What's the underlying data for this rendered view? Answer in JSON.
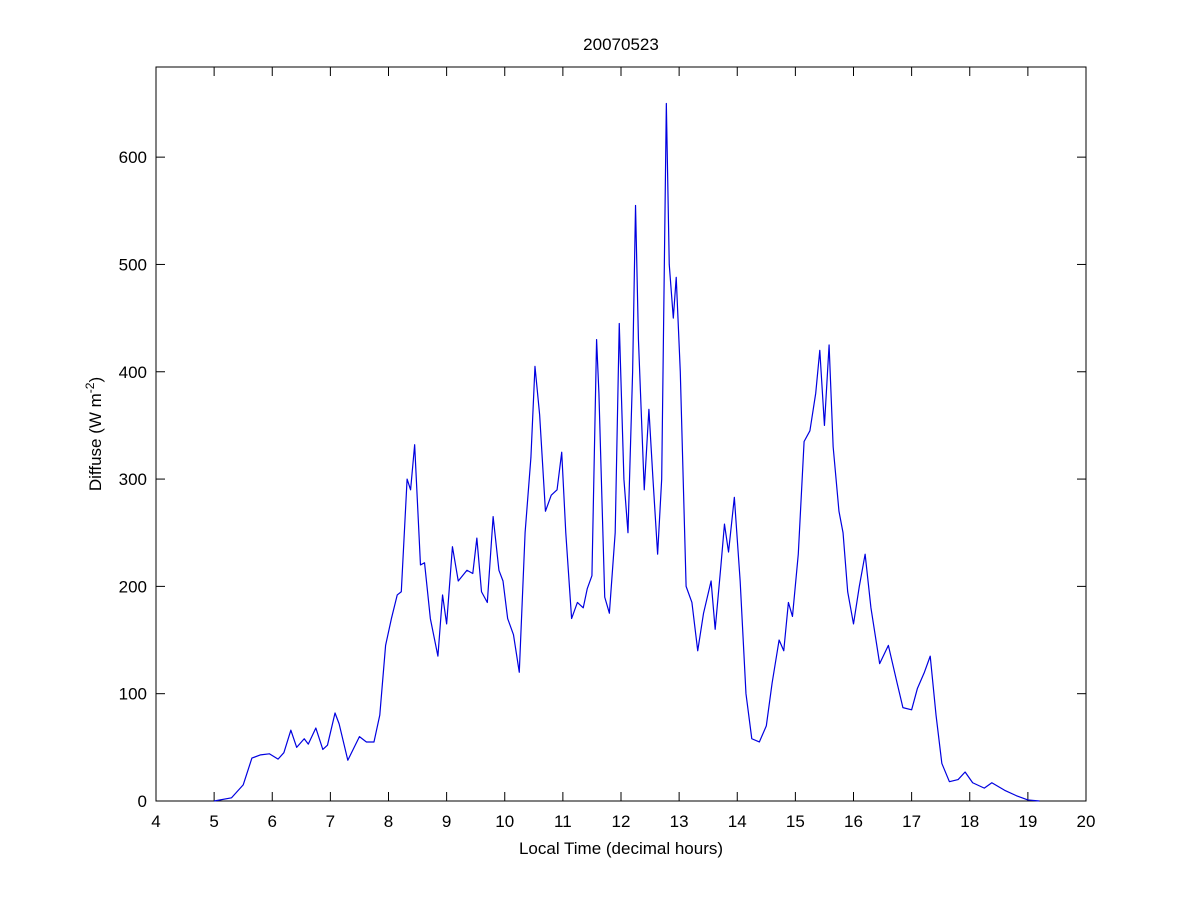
{
  "chart_data": {
    "type": "line",
    "title": "20070523",
    "xlabel": "Local Time (decimal hours)",
    "ylabel": [
      "Diffuse (W m",
      "-2",
      ")"
    ],
    "x": [
      5.0,
      5.3,
      5.5,
      5.65,
      5.8,
      5.95,
      6.1,
      6.2,
      6.32,
      6.42,
      6.55,
      6.62,
      6.75,
      6.87,
      6.95,
      7.08,
      7.15,
      7.3,
      7.5,
      7.62,
      7.75,
      7.85,
      7.95,
      8.05,
      8.15,
      8.22,
      8.32,
      8.38,
      8.45,
      8.55,
      8.62,
      8.72,
      8.85,
      8.93,
      9.0,
      9.1,
      9.2,
      9.35,
      9.45,
      9.52,
      9.6,
      9.7,
      9.8,
      9.9,
      9.97,
      10.05,
      10.15,
      10.25,
      10.35,
      10.45,
      10.52,
      10.6,
      10.7,
      10.8,
      10.9,
      10.98,
      11.05,
      11.15,
      11.25,
      11.35,
      11.42,
      11.5,
      11.58,
      11.62,
      11.72,
      11.8,
      11.9,
      11.97,
      12.05,
      12.12,
      12.2,
      12.25,
      12.3,
      12.4,
      12.48,
      12.55,
      12.63,
      12.7,
      12.78,
      12.83,
      12.9,
      12.95,
      13.02,
      13.12,
      13.22,
      13.32,
      13.42,
      13.55,
      13.62,
      13.72,
      13.78,
      13.85,
      13.95,
      14.05,
      14.15,
      14.25,
      14.38,
      14.5,
      14.6,
      14.72,
      14.8,
      14.88,
      14.95,
      15.05,
      15.15,
      15.25,
      15.35,
      15.42,
      15.5,
      15.58,
      15.65,
      15.75,
      15.82,
      15.9,
      16.0,
      16.1,
      16.2,
      16.3,
      16.45,
      16.6,
      16.75,
      16.85,
      17.0,
      17.1,
      17.22,
      17.32,
      17.42,
      17.52,
      17.65,
      17.8,
      17.92,
      18.05,
      18.25,
      18.38,
      18.6,
      18.8,
      19.0,
      19.2
    ],
    "series": [
      {
        "color": "#0000e0",
        "values": [
          0,
          3,
          15,
          40,
          43,
          44,
          39,
          45,
          66,
          50,
          58,
          53,
          68,
          48,
          52,
          82,
          72,
          38,
          60,
          55,
          55,
          80,
          145,
          170,
          192,
          195,
          300,
          290,
          332,
          220,
          222,
          170,
          135,
          192,
          165,
          237,
          205,
          215,
          212,
          245,
          195,
          185,
          265,
          215,
          205,
          170,
          155,
          120,
          250,
          320,
          405,
          360,
          270,
          285,
          290,
          325,
          250,
          170,
          185,
          180,
          198,
          210,
          430,
          380,
          190,
          175,
          250,
          445,
          300,
          250,
          400,
          555,
          430,
          290,
          365,
          300,
          230,
          300,
          650,
          500,
          450,
          488,
          400,
          200,
          185,
          140,
          175,
          205,
          160,
          220,
          258,
          232,
          283,
          205,
          100,
          58,
          55,
          70,
          110,
          150,
          140,
          185,
          172,
          230,
          335,
          345,
          380,
          420,
          350,
          425,
          330,
          270,
          250,
          195,
          165,
          200,
          230,
          180,
          128,
          145,
          110,
          87,
          85,
          105,
          120,
          135,
          80,
          35,
          18,
          20,
          27,
          17,
          12,
          17,
          10,
          5,
          1,
          0
        ]
      }
    ],
    "xlim": [
      4,
      20
    ],
    "xticks": [
      4,
      5,
      6,
      7,
      8,
      9,
      10,
      11,
      12,
      13,
      14,
      15,
      16,
      17,
      18,
      19,
      20
    ],
    "ylim": [
      0,
      684
    ],
    "yticks": [
      0,
      100,
      200,
      300,
      400,
      500,
      600
    ]
  }
}
